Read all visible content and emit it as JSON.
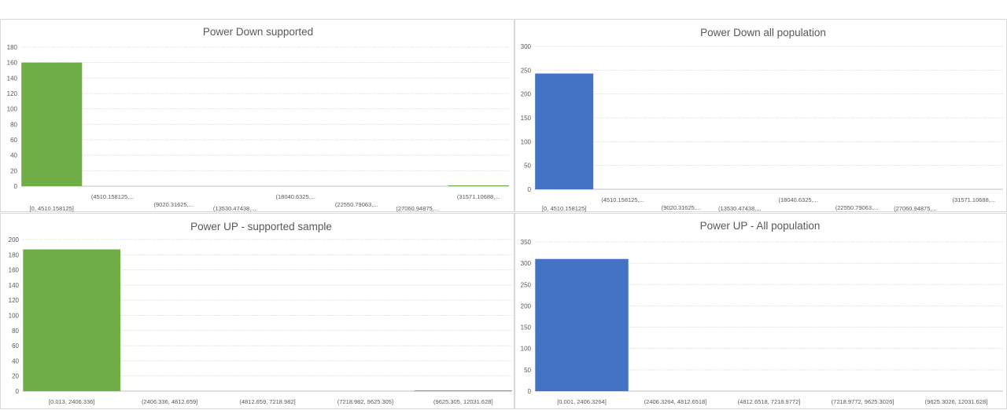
{
  "chart_data": [
    {
      "type": "bar",
      "title": "Power Down supported",
      "color": "#70AD47",
      "grid": true,
      "ylim": [
        0,
        180
      ],
      "yticks": [
        0,
        20,
        40,
        60,
        80,
        100,
        120,
        140,
        160,
        180
      ],
      "categories": [
        "[0, 4510.158125]",
        "(4510.158125,...",
        "(9020.31625,...",
        "(13530.47438,...",
        "(18040.6325,...",
        "(22550.79063,...",
        "(27060.94875,...",
        "(31571.10688,..."
      ],
      "values": [
        160,
        0,
        0,
        0,
        0,
        0,
        0,
        1
      ]
    },
    {
      "type": "bar",
      "title": "Power Down all population",
      "color": "#4472C4",
      "grid": true,
      "ylim": [
        0,
        300
      ],
      "yticks": [
        0,
        50,
        100,
        150,
        200,
        250,
        300
      ],
      "categories": [
        "[0, 4510.158125]",
        "(4510.158125,...",
        "(9020.31625,...",
        "(13530.47438,...",
        "(18040.6325,...",
        "(22550.79063,...",
        "(27060.94875,...",
        "(31571.10688,..."
      ],
      "values": [
        243,
        0,
        0,
        0,
        0,
        0,
        0,
        0
      ]
    },
    {
      "type": "bar",
      "title": "Power UP - supported sample",
      "color": "#70AD47",
      "grid": true,
      "ylim": [
        0,
        200
      ],
      "yticks": [
        0,
        20,
        40,
        60,
        80,
        100,
        120,
        140,
        160,
        180,
        200
      ],
      "categories": [
        "[0.013, 2406.336]",
        "(2406.336, 4812.659]",
        "(4812.659, 7218.982]",
        "(7218.982, 9625.305]",
        "(9625.305, 12031.628]"
      ],
      "values": [
        187,
        0,
        0,
        0,
        1
      ]
    },
    {
      "type": "bar",
      "title": "Power UP - All population",
      "color": "#4472C4",
      "grid": true,
      "ylim": [
        0,
        350
      ],
      "yticks": [
        0,
        50,
        100,
        150,
        200,
        250,
        300,
        350
      ],
      "categories": [
        "[0.001, 2406.3264]",
        "(2406.3264, 4812.6518]",
        "(4812.6518, 7218.9772]",
        "(7218.9772, 9625.3026]",
        "(9625.3026, 12031.628]"
      ],
      "values": [
        310,
        0,
        0,
        0,
        0
      ]
    }
  ]
}
